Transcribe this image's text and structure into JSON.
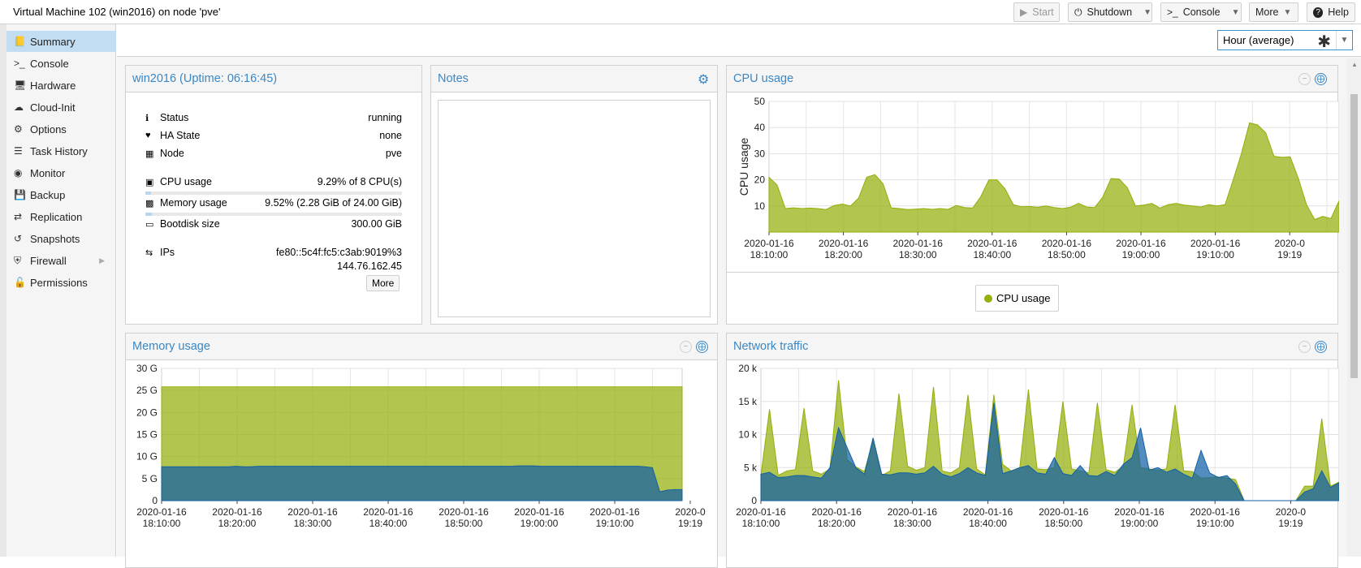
{
  "window": {
    "title": "Virtual Machine 102 (win2016) on node 'pve'"
  },
  "toolbar": {
    "start": {
      "label": "Start",
      "icon": "play-icon"
    },
    "shutdown": {
      "label": "Shutdown",
      "icon": "power-icon"
    },
    "console": {
      "label": "Console",
      "icon": "terminal-icon"
    },
    "more": {
      "label": "More"
    },
    "help": {
      "label": "Help",
      "icon": "question-icon"
    }
  },
  "sidebar": {
    "items": [
      {
        "label": "Summary",
        "icon": "book-icon",
        "active": true
      },
      {
        "label": "Console",
        "icon": "terminal-icon"
      },
      {
        "label": "Hardware",
        "icon": "desktop-icon"
      },
      {
        "label": "Cloud-Init",
        "icon": "cloud-icon"
      },
      {
        "label": "Options",
        "icon": "gear-icon"
      },
      {
        "label": "Task History",
        "icon": "list-icon"
      },
      {
        "label": "Monitor",
        "icon": "eye-icon"
      },
      {
        "label": "Backup",
        "icon": "floppy-icon"
      },
      {
        "label": "Replication",
        "icon": "retweet-icon"
      },
      {
        "label": "Snapshots",
        "icon": "history-icon"
      },
      {
        "label": "Firewall",
        "icon": "shield-icon"
      },
      {
        "label": "Permissions",
        "icon": "unlock-icon"
      }
    ]
  },
  "timeframe": {
    "value": "Hour (average)"
  },
  "status_panel": {
    "title": "win2016 (Uptime: 06:16:45)",
    "status_label": "Status",
    "status_value": "running",
    "ha_label": "HA State",
    "ha_value": "none",
    "node_label": "Node",
    "node_value": "pve",
    "cpu_label": "CPU usage",
    "cpu_value": "9.29% of 8 CPU(s)",
    "cpu_fraction": 0.0929,
    "mem_label": "Memory usage",
    "mem_value": "9.52% (2.28 GiB of 24.00 GiB)",
    "mem_fraction": 0.0952,
    "disk_label": "Bootdisk size",
    "disk_value": "300.00 GiB",
    "ips_label": "IPs",
    "ip1": "fe80::5c4f:fc5:c3ab:9019%3",
    "ip2": "144.76.162.45",
    "more_label": "More"
  },
  "notes_panel": {
    "title": "Notes"
  },
  "cpu_panel": {
    "title": "CPU usage",
    "legend": "CPU usage"
  },
  "memory_panel": {
    "title": "Memory usage"
  },
  "network_panel": {
    "title": "Network traffic"
  },
  "colors": {
    "green": "#94ae0a",
    "blue": "#115fa6",
    "accent": "#3a87c5"
  },
  "chart_data": [
    {
      "type": "area",
      "title": "CPU usage",
      "ylabel": "CPU usage",
      "ylim": [
        0,
        50
      ],
      "yticks": [
        10,
        20,
        30,
        40,
        50
      ],
      "xtick_labels": [
        [
          "2020-01-16",
          "18:10:00"
        ],
        [
          "2020-01-16",
          "18:20:00"
        ],
        [
          "2020-01-16",
          "18:30:00"
        ],
        [
          "2020-01-16",
          "18:40:00"
        ],
        [
          "2020-01-16",
          "18:50:00"
        ],
        [
          "2020-01-16",
          "19:00:00"
        ],
        [
          "2020-01-16",
          "19:10:00"
        ],
        [
          "2020-0",
          "19:19"
        ]
      ],
      "series": [
        {
          "name": "CPU usage",
          "color": "#94ae0a",
          "values": [
            21,
            18,
            9,
            9.3,
            9,
            9.2,
            9,
            8.6,
            10.2,
            10.7,
            10,
            13,
            21,
            22,
            18.5,
            9.3,
            9,
            8.6,
            8.8,
            9,
            8.7,
            9,
            8.7,
            10.2,
            9.4,
            9.2,
            13.5,
            20,
            20,
            16.5,
            10.5,
            9.7,
            9.8,
            9.5,
            10,
            9.4,
            9,
            9.5,
            11,
            9.6,
            9.4,
            13.5,
            20.5,
            20.3,
            17,
            10,
            10.3,
            11,
            9.2,
            10.5,
            11,
            10.3,
            10,
            9.6,
            10.5,
            10,
            10.5,
            20,
            30,
            41.8,
            41,
            38,
            29,
            28.6,
            28.8,
            20.5,
            10.5,
            4.8,
            6,
            5.2,
            12
          ]
        }
      ]
    },
    {
      "type": "area",
      "title": "Memory usage",
      "ylim": [
        0,
        30
      ],
      "ytick_labels": [
        "0",
        "5 G",
        "10 G",
        "15 G",
        "20 G",
        "25 G",
        "30 G"
      ],
      "xtick_labels": [
        [
          "2020-01-16",
          "18:10:00"
        ],
        [
          "2020-01-16",
          "18:20:00"
        ],
        [
          "2020-01-16",
          "18:30:00"
        ],
        [
          "2020-01-16",
          "18:40:00"
        ],
        [
          "2020-01-16",
          "18:50:00"
        ],
        [
          "2020-01-16",
          "19:00:00"
        ],
        [
          "2020-01-16",
          "19:10:00"
        ],
        [
          "2020-0",
          "19:19"
        ]
      ],
      "series": [
        {
          "name": "",
          "color": "#94ae0a",
          "values": [
            25.8,
            25.8,
            25.8,
            25.8,
            25.8,
            25.8,
            25.8,
            25.8,
            25.8,
            25.8,
            25.8,
            25.8,
            25.8,
            25.8,
            25.8,
            25.8,
            25.8,
            25.8,
            25.8,
            25.8,
            25.8,
            25.8,
            25.8,
            25.8,
            25.8,
            25.8,
            25.8,
            25.8,
            25.8,
            25.8,
            25.8,
            25.8,
            25.8,
            25.8,
            25.8,
            25.8,
            25.8,
            25.8,
            25.8,
            25.8,
            25.8,
            25.8,
            25.8,
            25.8,
            25.8,
            25.8,
            25.8,
            25.8,
            25.8,
            25.8,
            25.8,
            25.8,
            25.8,
            25.8,
            25.8,
            25.8,
            25.8,
            25.8,
            25.8,
            25.8,
            25.8,
            25.8,
            25.8,
            25.8,
            25.8,
            25.8,
            25.8,
            25.8,
            25.8,
            25.8,
            25.8
          ]
        },
        {
          "name": "",
          "color": "#115fa6",
          "values": [
            7.7,
            7.7,
            7.7,
            7.7,
            7.7,
            7.7,
            7.7,
            7.7,
            7.7,
            7.7,
            7.8,
            7.7,
            7.7,
            7.8,
            7.8,
            7.8,
            7.8,
            7.8,
            7.8,
            7.8,
            7.8,
            7.8,
            7.8,
            7.8,
            7.8,
            7.8,
            7.8,
            7.8,
            7.8,
            7.8,
            7.8,
            7.8,
            7.8,
            7.8,
            7.8,
            7.8,
            7.8,
            7.8,
            7.8,
            7.8,
            7.8,
            7.8,
            7.8,
            7.8,
            7.8,
            7.8,
            7.8,
            7.8,
            7.9,
            7.9,
            7.9,
            7.8,
            7.8,
            7.8,
            7.8,
            7.8,
            7.8,
            7.8,
            7.8,
            7.8,
            7.8,
            7.8,
            7.8,
            7.8,
            7.8,
            7.7,
            7.5,
            2.0,
            2.4,
            2.5,
            2.5
          ]
        }
      ]
    },
    {
      "type": "area",
      "title": "Network traffic",
      "ylim": [
        0,
        20000
      ],
      "ytick_labels": [
        "0",
        "5 k",
        "10 k",
        "15 k",
        "20 k"
      ],
      "xtick_labels": [
        [
          "2020-01-16",
          "18:10:00"
        ],
        [
          "2020-01-16",
          "18:20:00"
        ],
        [
          "2020-01-16",
          "18:30:00"
        ],
        [
          "2020-01-16",
          "18:40:00"
        ],
        [
          "2020-01-16",
          "18:50:00"
        ],
        [
          "2020-01-16",
          "19:00:00"
        ],
        [
          "2020-01-16",
          "19:10:00"
        ],
        [
          "2020-0",
          "19:19"
        ]
      ],
      "series": [
        {
          "name": "",
          "color": "#94ae0a",
          "values": [
            3800,
            13800,
            3800,
            4500,
            4700,
            14000,
            4500,
            4000,
            4800,
            18200,
            6200,
            5100,
            4400,
            9000,
            3800,
            4500,
            16200,
            5200,
            4600,
            5000,
            17200,
            4500,
            4200,
            5000,
            16000,
            4800,
            3900,
            16000,
            5500,
            4500,
            5000,
            16800,
            4800,
            4700,
            5000,
            15000,
            4800,
            4500,
            4200,
            14800,
            4700,
            4300,
            5200,
            14500,
            5000,
            4800,
            4600,
            4800,
            14500,
            4500,
            4400,
            3400,
            3500,
            3600,
            3400,
            3200,
            0,
            0,
            0,
            0,
            0,
            0,
            0,
            2200,
            2200,
            12400,
            2200,
            2800
          ]
        },
        {
          "name": "",
          "color": "#115fa6",
          "values": [
            4000,
            4300,
            3500,
            3600,
            3800,
            3800,
            3600,
            3400,
            5000,
            11000,
            8000,
            5000,
            4000,
            9500,
            4000,
            3900,
            4200,
            4200,
            4000,
            4200,
            5200,
            4000,
            3600,
            4100,
            5000,
            4200,
            3800,
            14800,
            4100,
            4500,
            5000,
            5300,
            4200,
            4000,
            6500,
            4100,
            3800,
            5300,
            3800,
            3700,
            4400,
            3800,
            5500,
            6500,
            11000,
            4600,
            5000,
            4300,
            4800,
            4000,
            3400,
            7600,
            4200,
            3500,
            3800,
            2500,
            0,
            0,
            0,
            0,
            0,
            0,
            0,
            1300,
            1800,
            4500,
            2000,
            2700
          ]
        }
      ]
    }
  ]
}
